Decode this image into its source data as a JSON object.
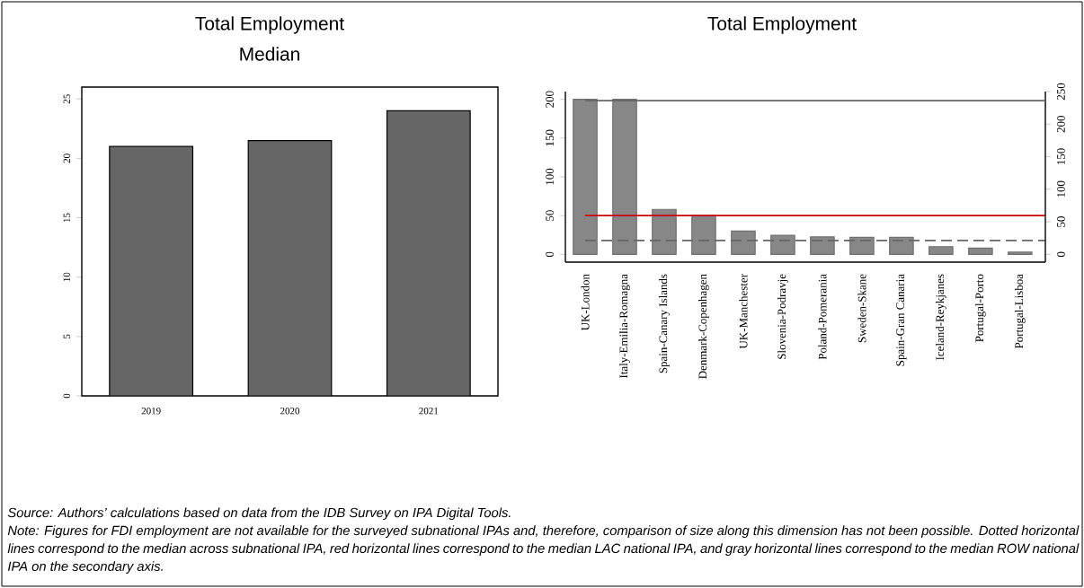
{
  "chart_data": [
    {
      "type": "bar",
      "title": "Total Employment",
      "subtitle": "Median",
      "categories": [
        "2019",
        "2020",
        "2021"
      ],
      "values": [
        21,
        21.5,
        24
      ],
      "color": "#666666",
      "ylim": [
        0,
        26
      ],
      "yticks": [
        0,
        5,
        10,
        15,
        20,
        25
      ],
      "annotations": [
        "Source: Authors’ calculations based on data from the IDB Survey on IPA Digital Tools.",
        "Note: Figures for FDI employment are not available for the surveyed subnational IPAs and, therefore, comparison of size along this dimension has not been possible. Dotted horizontal lines correspond to the median across subnational IPA, red horizontal lines correspond to the median LAC national IPA, and gray horizontal lines correspond to the median ROW national IPA on the secondary axis."
      ]
    },
    {
      "type": "bar",
      "title": "Total Employment",
      "categories": [
        "UK-London",
        "Italy-Emilia-Romagna",
        "Spain-Canary Islands",
        "Denmark-Copenhagen",
        "UK-Manchester",
        "Slovenia-Podravje",
        "Poland-Pomerania",
        "Sweden-Skane",
        "Spain-Gran Canaria",
        "Iceland-Reykjanes",
        "Portugal-Porto",
        "Portugal-Lisboa"
      ],
      "values": [
        200,
        200,
        58,
        50,
        30,
        24.5,
        22.5,
        22,
        22,
        10,
        8,
        3
      ],
      "color": "#878787",
      "ylim": [
        -10,
        210
      ],
      "yticks": [
        0,
        50,
        100,
        150,
        200
      ],
      "y2lim": [
        -12,
        250
      ],
      "y2ticks": [
        0,
        50,
        100,
        150,
        200,
        250
      ],
      "ref_lines": [
        {
          "axis": "y",
          "value": 50,
          "color": "#cc0000",
          "line_style": "solid"
        },
        {
          "axis": "y",
          "value": 18,
          "color": "#666666",
          "line_style": "dashed"
        },
        {
          "axis": "y2",
          "value": 236,
          "color": "#666666",
          "line_style": "solid"
        }
      ]
    }
  ]
}
